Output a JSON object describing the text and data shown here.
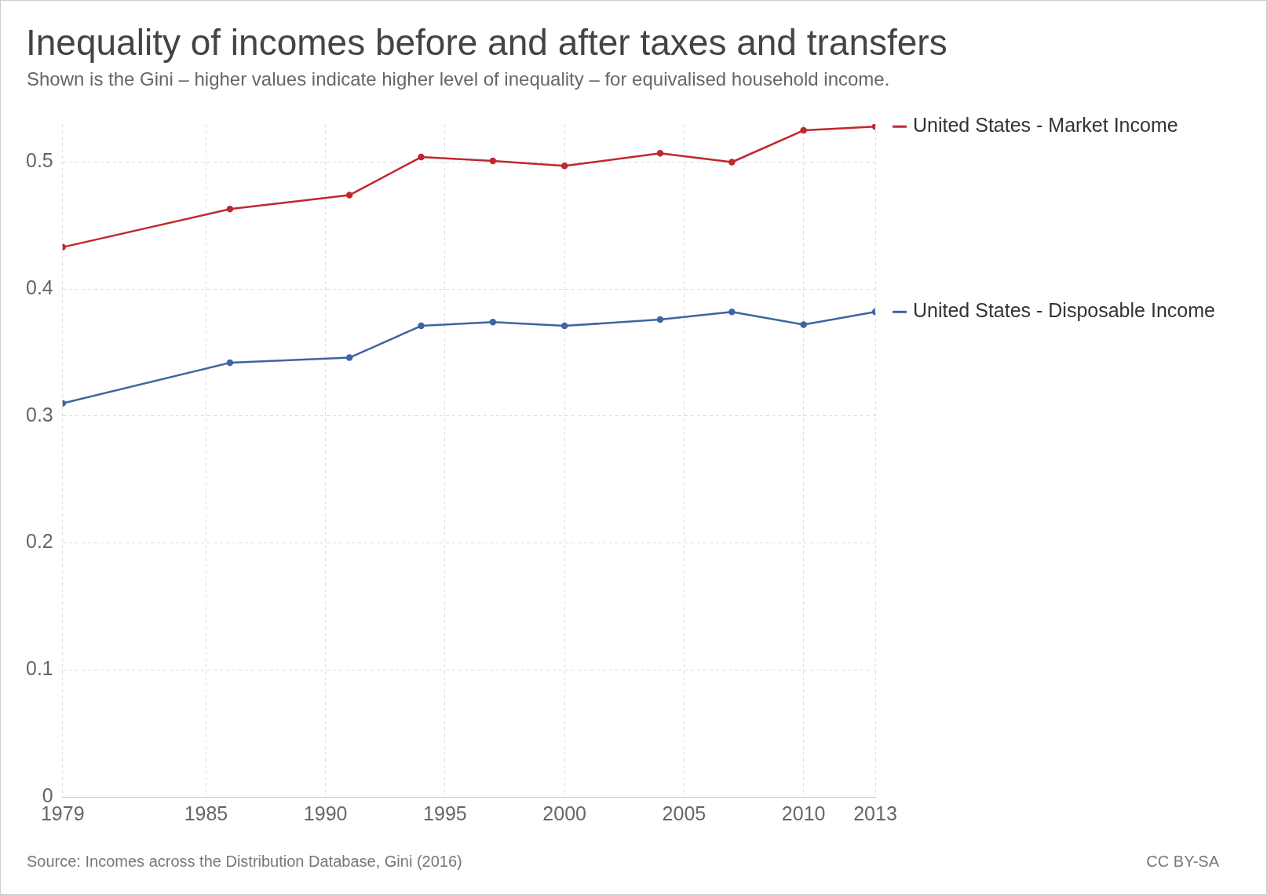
{
  "chart_data": {
    "type": "line",
    "title": "Inequality of incomes before and after taxes and transfers",
    "subtitle": "Shown is the Gini – higher values indicate higher level of inequality – for equivalised household income.",
    "x": [
      1979,
      1986,
      1991,
      1994,
      1997,
      2000,
      2004,
      2007,
      2010,
      2013
    ],
    "series": [
      {
        "name": "United States - Market Income",
        "color": "#c0282d",
        "values": [
          0.433,
          0.463,
          0.474,
          0.504,
          0.501,
          0.497,
          0.507,
          0.5,
          0.525,
          0.528
        ]
      },
      {
        "name": "United States - Disposable Income",
        "color": "#3e65a3",
        "values": [
          0.31,
          0.342,
          0.346,
          0.371,
          0.374,
          0.371,
          0.376,
          0.382,
          0.372,
          0.382
        ]
      }
    ],
    "xlim": [
      1979,
      2013
    ],
    "xticks": [
      1979,
      1985,
      1990,
      1995,
      2000,
      2005,
      2010,
      2013
    ],
    "ylim": [
      0,
      0.53
    ],
    "yticks": [
      0,
      0.1,
      0.2,
      0.3,
      0.4,
      0.5
    ],
    "grid": true,
    "legend": "right",
    "marker": "circle",
    "line_style": "solid",
    "annotations": [
      "Source: Incomes across the Distribution Database, Gini (2016)",
      "CC BY-SA"
    ]
  }
}
